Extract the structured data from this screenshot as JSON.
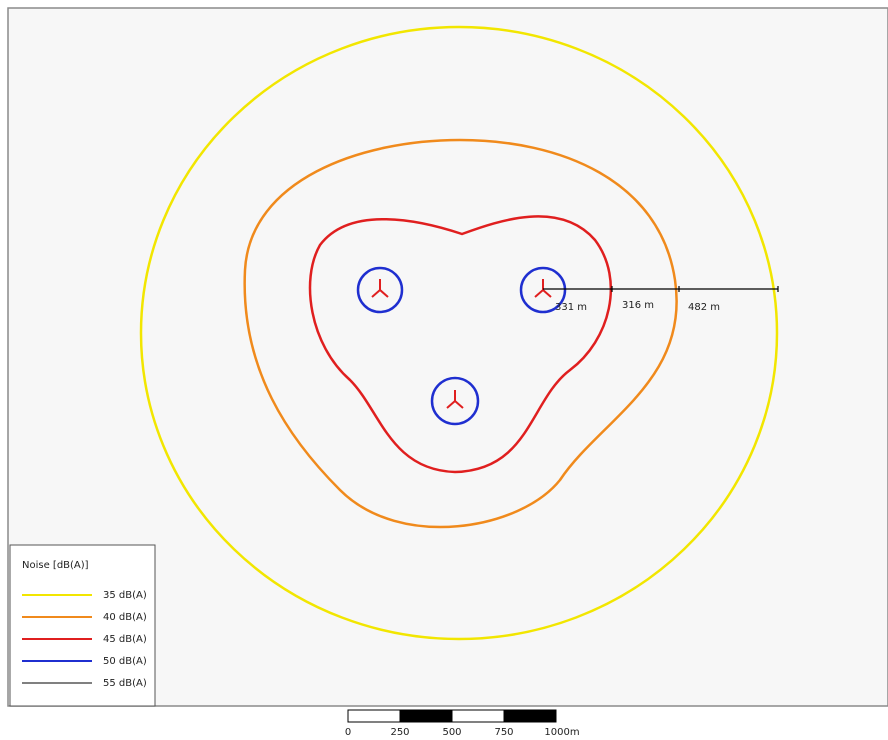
{
  "legend": {
    "title": "Noise [dB(A)]",
    "entries": [
      {
        "label": "35 dB(A)",
        "color": "#f2e600"
      },
      {
        "label": "40 dB(A)",
        "color": "#f08a1c"
      },
      {
        "label": "45 dB(A)",
        "color": "#e01f1f"
      },
      {
        "label": "50 dB(A)",
        "color": "#1f2fd0"
      },
      {
        "label": "55 dB(A)",
        "color": "#000000"
      }
    ]
  },
  "distances": [
    "331 m",
    "316 m",
    "482 m"
  ],
  "scale_bar": [
    "0",
    "250",
    "500",
    "750",
    "1000m"
  ]
}
